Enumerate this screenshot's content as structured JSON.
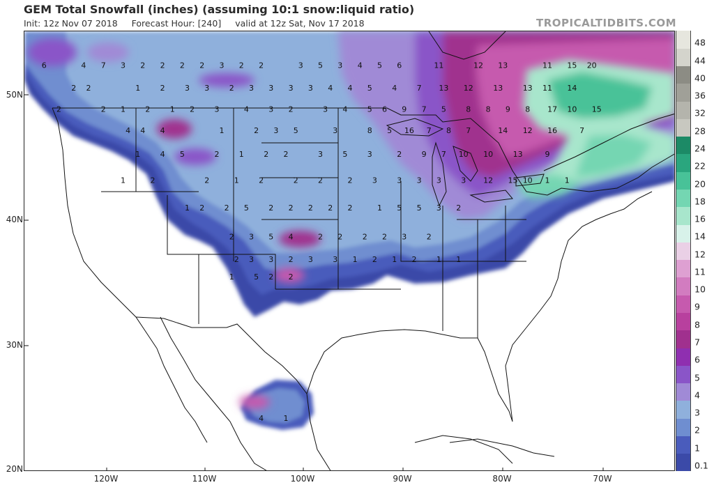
{
  "header": {
    "title": "GEM Total Snowfall (inches) (assuming 10:1 snow:liquid ratio)",
    "init": "Init: 12z Nov 07 2018",
    "forecast_hour": "Forecast Hour: [240]",
    "valid": "valid at 12z Sat, Nov 17 2018",
    "brand": "TROPICALTIDBITS.COM"
  },
  "axes": {
    "lat_ticks": [
      "50N",
      "40N",
      "30N",
      "20N"
    ],
    "lon_ticks": [
      "120W",
      "110W",
      "100W",
      "90W",
      "80W",
      "70W"
    ]
  },
  "colorbar": {
    "levels": [
      "0.1",
      "1",
      "2",
      "3",
      "4",
      "5",
      "6",
      "7",
      "8",
      "9",
      "10",
      "11",
      "12",
      "14",
      "16",
      "18",
      "20",
      "22",
      "24",
      "28",
      "32",
      "36",
      "40",
      "44",
      "48"
    ],
    "colors": [
      "#3b4aa8",
      "#4a5cbc",
      "#6f8ed0",
      "#8fb0dc",
      "#a08ad6",
      "#8a55c8",
      "#8f2fb0",
      "#a0308e",
      "#b8409e",
      "#c65aae",
      "#d27cc0",
      "#dea0d2",
      "#ead0e6",
      "#d8f2ea",
      "#a8e6cc",
      "#74d6b2",
      "#48c298",
      "#2aa67e",
      "#1c8a66",
      "#c8c8c0",
      "#b4b4ac",
      "#a0a098",
      "#8c8c84",
      "#d4d4cc",
      "#e6e6de"
    ]
  },
  "snow_labels": [
    {
      "lon": -126.5,
      "lat": 52.5,
      "v": "6"
    },
    {
      "lon": -122.5,
      "lat": 52.5,
      "v": "4"
    },
    {
      "lon": -120.5,
      "lat": 52.5,
      "v": "7"
    },
    {
      "lon": -118.5,
      "lat": 52.5,
      "v": "3"
    },
    {
      "lon": -116.5,
      "lat": 52.5,
      "v": "2"
    },
    {
      "lon": -114.5,
      "lat": 52.5,
      "v": "2"
    },
    {
      "lon": -112.5,
      "lat": 52.5,
      "v": "2"
    },
    {
      "lon": -110.5,
      "lat": 52.5,
      "v": "2"
    },
    {
      "lon": -108.5,
      "lat": 52.5,
      "v": "3"
    },
    {
      "lon": -106.5,
      "lat": 52.5,
      "v": "2"
    },
    {
      "lon": -104.5,
      "lat": 52.5,
      "v": "2"
    },
    {
      "lon": -100.5,
      "lat": 52.5,
      "v": "3"
    },
    {
      "lon": -98.5,
      "lat": 52.5,
      "v": "5"
    },
    {
      "lon": -96.5,
      "lat": 52.5,
      "v": "3"
    },
    {
      "lon": -94.5,
      "lat": 52.5,
      "v": "4"
    },
    {
      "lon": -92.5,
      "lat": 52.5,
      "v": "5"
    },
    {
      "lon": -90.5,
      "lat": 52.5,
      "v": "6"
    },
    {
      "lon": -86.5,
      "lat": 52.5,
      "v": "11"
    },
    {
      "lon": -82.5,
      "lat": 52.5,
      "v": "12"
    },
    {
      "lon": -80.0,
      "lat": 52.5,
      "v": "13"
    },
    {
      "lon": -75.5,
      "lat": 52.5,
      "v": "11"
    },
    {
      "lon": -73.0,
      "lat": 52.5,
      "v": "15"
    },
    {
      "lon": -71.0,
      "lat": 52.5,
      "v": "20"
    },
    {
      "lon": -123.5,
      "lat": 50.7,
      "v": "2"
    },
    {
      "lon": -122.0,
      "lat": 50.7,
      "v": "2"
    },
    {
      "lon": -117.0,
      "lat": 50.7,
      "v": "1"
    },
    {
      "lon": -114.5,
      "lat": 50.7,
      "v": "2"
    },
    {
      "lon": -112.0,
      "lat": 50.7,
      "v": "3"
    },
    {
      "lon": -110.0,
      "lat": 50.7,
      "v": "3"
    },
    {
      "lon": -107.5,
      "lat": 50.7,
      "v": "2"
    },
    {
      "lon": -105.5,
      "lat": 50.7,
      "v": "3"
    },
    {
      "lon": -103.5,
      "lat": 50.7,
      "v": "3"
    },
    {
      "lon": -101.5,
      "lat": 50.7,
      "v": "3"
    },
    {
      "lon": -99.5,
      "lat": 50.7,
      "v": "3"
    },
    {
      "lon": -97.5,
      "lat": 50.7,
      "v": "4"
    },
    {
      "lon": -95.5,
      "lat": 50.7,
      "v": "4"
    },
    {
      "lon": -93.5,
      "lat": 50.7,
      "v": "5"
    },
    {
      "lon": -91.0,
      "lat": 50.7,
      "v": "4"
    },
    {
      "lon": -88.5,
      "lat": 50.7,
      "v": "7"
    },
    {
      "lon": -86.0,
      "lat": 50.7,
      "v": "13"
    },
    {
      "lon": -83.5,
      "lat": 50.7,
      "v": "12"
    },
    {
      "lon": -80.5,
      "lat": 50.7,
      "v": "13"
    },
    {
      "lon": -77.5,
      "lat": 50.7,
      "v": "13"
    },
    {
      "lon": -75.5,
      "lat": 50.7,
      "v": "11"
    },
    {
      "lon": -73.0,
      "lat": 50.7,
      "v": "14"
    },
    {
      "lon": -125.0,
      "lat": 49.0,
      "v": "2"
    },
    {
      "lon": -120.5,
      "lat": 49.0,
      "v": "2"
    },
    {
      "lon": -118.5,
      "lat": 49.0,
      "v": "1"
    },
    {
      "lon": -116.0,
      "lat": 49.0,
      "v": "2"
    },
    {
      "lon": -113.5,
      "lat": 49.0,
      "v": "1"
    },
    {
      "lon": -111.5,
      "lat": 49.0,
      "v": "2"
    },
    {
      "lon": -109.0,
      "lat": 49.0,
      "v": "3"
    },
    {
      "lon": -106.0,
      "lat": 49.0,
      "v": "4"
    },
    {
      "lon": -103.5,
      "lat": 49.0,
      "v": "3"
    },
    {
      "lon": -101.5,
      "lat": 49.0,
      "v": "2"
    },
    {
      "lon": -98.0,
      "lat": 49.0,
      "v": "3"
    },
    {
      "lon": -96.0,
      "lat": 49.0,
      "v": "4"
    },
    {
      "lon": -93.5,
      "lat": 49.0,
      "v": "5"
    },
    {
      "lon": -92.0,
      "lat": 49.0,
      "v": "6"
    },
    {
      "lon": -90.0,
      "lat": 49.0,
      "v": "9"
    },
    {
      "lon": -88.0,
      "lat": 49.0,
      "v": "7"
    },
    {
      "lon": -86.0,
      "lat": 49.0,
      "v": "5"
    },
    {
      "lon": -83.5,
      "lat": 49.0,
      "v": "8"
    },
    {
      "lon": -81.5,
      "lat": 49.0,
      "v": "8"
    },
    {
      "lon": -79.5,
      "lat": 49.0,
      "v": "9"
    },
    {
      "lon": -77.5,
      "lat": 49.0,
      "v": "8"
    },
    {
      "lon": -75.0,
      "lat": 49.0,
      "v": "17"
    },
    {
      "lon": -73.0,
      "lat": 49.0,
      "v": "10"
    },
    {
      "lon": -70.5,
      "lat": 49.0,
      "v": "15"
    },
    {
      "lon": -118.0,
      "lat": 47.3,
      "v": "4"
    },
    {
      "lon": -116.5,
      "lat": 47.3,
      "v": "4"
    },
    {
      "lon": -114.5,
      "lat": 47.3,
      "v": "4"
    },
    {
      "lon": -108.5,
      "lat": 47.3,
      "v": "1"
    },
    {
      "lon": -105.0,
      "lat": 47.3,
      "v": "2"
    },
    {
      "lon": -103.0,
      "lat": 47.3,
      "v": "3"
    },
    {
      "lon": -101.0,
      "lat": 47.3,
      "v": "5"
    },
    {
      "lon": -97.0,
      "lat": 47.3,
      "v": "3"
    },
    {
      "lon": -93.5,
      "lat": 47.3,
      "v": "8"
    },
    {
      "lon": -91.5,
      "lat": 47.3,
      "v": "5"
    },
    {
      "lon": -89.5,
      "lat": 47.3,
      "v": "16"
    },
    {
      "lon": -87.5,
      "lat": 47.3,
      "v": "7"
    },
    {
      "lon": -85.5,
      "lat": 47.3,
      "v": "8"
    },
    {
      "lon": -83.5,
      "lat": 47.3,
      "v": "7"
    },
    {
      "lon": -80.0,
      "lat": 47.3,
      "v": "14"
    },
    {
      "lon": -77.5,
      "lat": 47.3,
      "v": "12"
    },
    {
      "lon": -75.0,
      "lat": 47.3,
      "v": "16"
    },
    {
      "lon": -72.0,
      "lat": 47.3,
      "v": "7"
    },
    {
      "lon": -117.0,
      "lat": 45.4,
      "v": "1"
    },
    {
      "lon": -114.5,
      "lat": 45.4,
      "v": "4"
    },
    {
      "lon": -112.5,
      "lat": 45.4,
      "v": "5"
    },
    {
      "lon": -109.0,
      "lat": 45.4,
      "v": "2"
    },
    {
      "lon": -106.5,
      "lat": 45.4,
      "v": "1"
    },
    {
      "lon": -104.0,
      "lat": 45.4,
      "v": "2"
    },
    {
      "lon": -102.0,
      "lat": 45.4,
      "v": "2"
    },
    {
      "lon": -98.5,
      "lat": 45.4,
      "v": "3"
    },
    {
      "lon": -96.0,
      "lat": 45.4,
      "v": "5"
    },
    {
      "lon": -93.5,
      "lat": 45.4,
      "v": "3"
    },
    {
      "lon": -90.5,
      "lat": 45.4,
      "v": "2"
    },
    {
      "lon": -88.0,
      "lat": 45.4,
      "v": "9"
    },
    {
      "lon": -86.0,
      "lat": 45.4,
      "v": "7"
    },
    {
      "lon": -84.0,
      "lat": 45.4,
      "v": "10"
    },
    {
      "lon": -81.5,
      "lat": 45.4,
      "v": "10"
    },
    {
      "lon": -78.5,
      "lat": 45.4,
      "v": "13"
    },
    {
      "lon": -75.5,
      "lat": 45.4,
      "v": "9"
    },
    {
      "lon": -118.5,
      "lat": 43.3,
      "v": "1"
    },
    {
      "lon": -115.5,
      "lat": 43.3,
      "v": "2"
    },
    {
      "lon": -110.0,
      "lat": 43.3,
      "v": "2"
    },
    {
      "lon": -107.0,
      "lat": 43.3,
      "v": "1"
    },
    {
      "lon": -104.5,
      "lat": 43.3,
      "v": "2"
    },
    {
      "lon": -101.0,
      "lat": 43.3,
      "v": "2"
    },
    {
      "lon": -98.5,
      "lat": 43.3,
      "v": "2"
    },
    {
      "lon": -95.5,
      "lat": 43.3,
      "v": "2"
    },
    {
      "lon": -93.0,
      "lat": 43.3,
      "v": "3"
    },
    {
      "lon": -90.5,
      "lat": 43.3,
      "v": "3"
    },
    {
      "lon": -88.5,
      "lat": 43.3,
      "v": "3"
    },
    {
      "lon": -86.5,
      "lat": 43.3,
      "v": "3"
    },
    {
      "lon": -84.0,
      "lat": 43.3,
      "v": "3"
    },
    {
      "lon": -81.5,
      "lat": 43.3,
      "v": "12"
    },
    {
      "lon": -79.0,
      "lat": 43.3,
      "v": "15"
    },
    {
      "lon": -77.5,
      "lat": 43.3,
      "v": "10"
    },
    {
      "lon": -75.5,
      "lat": 43.3,
      "v": "1"
    },
    {
      "lon": -73.5,
      "lat": 43.3,
      "v": "1"
    },
    {
      "lon": -112.0,
      "lat": 41.1,
      "v": "1"
    },
    {
      "lon": -110.5,
      "lat": 41.1,
      "v": "2"
    },
    {
      "lon": -108.0,
      "lat": 41.1,
      "v": "2"
    },
    {
      "lon": -106.0,
      "lat": 41.1,
      "v": "5"
    },
    {
      "lon": -103.5,
      "lat": 41.1,
      "v": "2"
    },
    {
      "lon": -101.5,
      "lat": 41.1,
      "v": "2"
    },
    {
      "lon": -99.5,
      "lat": 41.1,
      "v": "2"
    },
    {
      "lon": -97.5,
      "lat": 41.1,
      "v": "2"
    },
    {
      "lon": -95.5,
      "lat": 41.1,
      "v": "2"
    },
    {
      "lon": -92.5,
      "lat": 41.1,
      "v": "1"
    },
    {
      "lon": -90.5,
      "lat": 41.1,
      "v": "5"
    },
    {
      "lon": -88.5,
      "lat": 41.1,
      "v": "5"
    },
    {
      "lon": -86.5,
      "lat": 41.1,
      "v": "3"
    },
    {
      "lon": -84.5,
      "lat": 41.1,
      "v": "2"
    },
    {
      "lon": -107.5,
      "lat": 38.8,
      "v": "2"
    },
    {
      "lon": -105.5,
      "lat": 38.8,
      "v": "3"
    },
    {
      "lon": -103.5,
      "lat": 38.8,
      "v": "5"
    },
    {
      "lon": -101.5,
      "lat": 38.8,
      "v": "4"
    },
    {
      "lon": -98.5,
      "lat": 38.8,
      "v": "2"
    },
    {
      "lon": -96.5,
      "lat": 38.8,
      "v": "2"
    },
    {
      "lon": -94.0,
      "lat": 38.8,
      "v": "2"
    },
    {
      "lon": -92.0,
      "lat": 38.8,
      "v": "2"
    },
    {
      "lon": -90.0,
      "lat": 38.8,
      "v": "3"
    },
    {
      "lon": -87.5,
      "lat": 38.8,
      "v": "2"
    },
    {
      "lon": -107.0,
      "lat": 37.0,
      "v": "2"
    },
    {
      "lon": -105.5,
      "lat": 37.0,
      "v": "3"
    },
    {
      "lon": -103.5,
      "lat": 37.0,
      "v": "3"
    },
    {
      "lon": -101.5,
      "lat": 37.0,
      "v": "2"
    },
    {
      "lon": -99.5,
      "lat": 37.0,
      "v": "3"
    },
    {
      "lon": -97.0,
      "lat": 37.0,
      "v": "3"
    },
    {
      "lon": -95.0,
      "lat": 37.0,
      "v": "1"
    },
    {
      "lon": -93.0,
      "lat": 37.0,
      "v": "2"
    },
    {
      "lon": -91.0,
      "lat": 37.0,
      "v": "1"
    },
    {
      "lon": -89.0,
      "lat": 37.0,
      "v": "2"
    },
    {
      "lon": -86.5,
      "lat": 37.0,
      "v": "1"
    },
    {
      "lon": -84.5,
      "lat": 37.0,
      "v": "1"
    },
    {
      "lon": -107.5,
      "lat": 35.6,
      "v": "1"
    },
    {
      "lon": -105.0,
      "lat": 35.6,
      "v": "5"
    },
    {
      "lon": -103.5,
      "lat": 35.6,
      "v": "2"
    },
    {
      "lon": -101.5,
      "lat": 35.6,
      "v": "2"
    },
    {
      "lon": -104.5,
      "lat": 24.3,
      "v": "4"
    },
    {
      "lon": -102.0,
      "lat": 24.3,
      "v": "1"
    }
  ]
}
